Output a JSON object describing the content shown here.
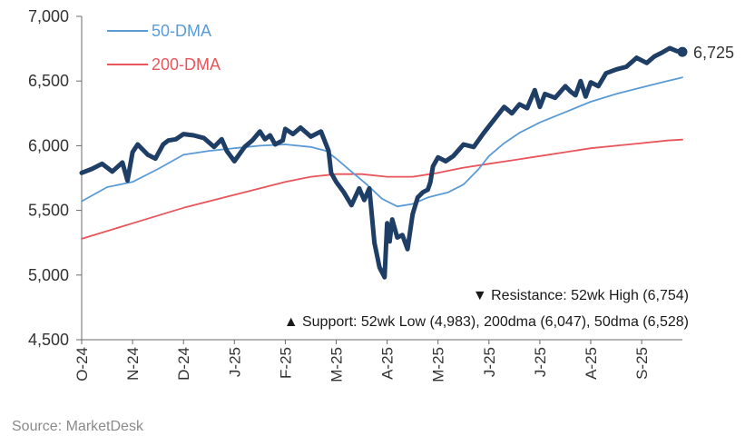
{
  "chart_data": {
    "type": "line",
    "title": "",
    "xlabel": "",
    "ylabel": "",
    "ylim": [
      4500,
      7000
    ],
    "yticks": [
      "7,000",
      "6,500",
      "6,000",
      "5,500",
      "5,000",
      "4,500"
    ],
    "ytick_values": [
      7000,
      6500,
      6000,
      5500,
      5000,
      4500
    ],
    "xticks": [
      "O-24",
      "N-24",
      "D-24",
      "J-25",
      "F-25",
      "M-25",
      "A-25",
      "M-25",
      "J-25",
      "J-25",
      "A-25",
      "S-25"
    ],
    "legend": [
      "50-DMA",
      "200-DMA"
    ],
    "last_value_label": "6,725",
    "colors": {
      "price": "#1f3e66",
      "dma50": "#5b9bd5",
      "dma200": "#e8555b",
      "axis": "#6b6b6b"
    },
    "series": [
      {
        "name": "Price",
        "color": "#1f3e66",
        "x": [
          0.0,
          0.2,
          0.4,
          0.6,
          0.8,
          0.9,
          1.0,
          1.1,
          1.3,
          1.45,
          1.6,
          1.7,
          1.85,
          2.0,
          2.2,
          2.4,
          2.6,
          2.75,
          2.85,
          3.0,
          3.2,
          3.35,
          3.5,
          3.6,
          3.7,
          3.8,
          3.95,
          4.0,
          4.15,
          4.3,
          4.5,
          4.7,
          4.85,
          4.9,
          5.0,
          5.15,
          5.3,
          5.45,
          5.55,
          5.65,
          5.75,
          5.85,
          5.95,
          6.0,
          6.05,
          6.1,
          6.2,
          6.3,
          6.4,
          6.5,
          6.6,
          6.7,
          6.8,
          6.85,
          6.9,
          7.0,
          7.15,
          7.3,
          7.5,
          7.7,
          7.9,
          8.1,
          8.3,
          8.45,
          8.6,
          8.75,
          8.9,
          9.0,
          9.1,
          9.3,
          9.5,
          9.6,
          9.7,
          9.8,
          9.9,
          10.0,
          10.15,
          10.3,
          10.5,
          10.7,
          10.9,
          11.1,
          11.25,
          11.4,
          11.55,
          11.7,
          11.8
        ],
        "values": [
          5790,
          5820,
          5860,
          5800,
          5870,
          5730,
          5950,
          6010,
          5930,
          5900,
          6010,
          6040,
          6050,
          6090,
          6080,
          6060,
          5990,
          6050,
          5960,
          5880,
          5990,
          6040,
          6110,
          6050,
          6080,
          6010,
          6040,
          6130,
          6090,
          6140,
          6070,
          6110,
          5960,
          5790,
          5720,
          5640,
          5540,
          5670,
          5580,
          5670,
          5250,
          5060,
          4983,
          5400,
          5260,
          5430,
          5290,
          5310,
          5200,
          5470,
          5600,
          5640,
          5660,
          5720,
          5840,
          5910,
          5880,
          5920,
          6010,
          5990,
          6100,
          6200,
          6300,
          6250,
          6320,
          6290,
          6430,
          6300,
          6400,
          6370,
          6460,
          6420,
          6390,
          6500,
          6380,
          6490,
          6460,
          6560,
          6590,
          6610,
          6680,
          6640,
          6690,
          6720,
          6754,
          6730,
          6725
        ]
      },
      {
        "name": "50-DMA",
        "color": "#5b9bd5",
        "x": [
          0.0,
          0.5,
          1.0,
          1.5,
          2.0,
          2.5,
          3.0,
          3.5,
          4.0,
          4.5,
          4.8,
          5.0,
          5.3,
          5.6,
          5.9,
          6.2,
          6.5,
          6.8,
          7.0,
          7.2,
          7.5,
          7.8,
          8.0,
          8.3,
          8.6,
          9.0,
          9.5,
          10.0,
          10.5,
          11.0,
          11.5,
          11.8
        ],
        "values": [
          5570,
          5680,
          5720,
          5820,
          5930,
          5960,
          5980,
          6000,
          6010,
          5990,
          5960,
          5900,
          5800,
          5700,
          5590,
          5530,
          5550,
          5600,
          5620,
          5640,
          5700,
          5820,
          5920,
          6020,
          6100,
          6180,
          6260,
          6340,
          6400,
          6450,
          6500,
          6528
        ]
      },
      {
        "name": "200-DMA",
        "color": "#e8555b",
        "x": [
          0.0,
          1.0,
          2.0,
          3.0,
          4.0,
          4.5,
          5.0,
          5.5,
          6.0,
          6.5,
          7.0,
          7.5,
          8.0,
          8.5,
          9.0,
          9.5,
          10.0,
          10.5,
          11.0,
          11.5,
          11.8
        ],
        "values": [
          5280,
          5400,
          5520,
          5620,
          5720,
          5760,
          5780,
          5780,
          5760,
          5760,
          5790,
          5830,
          5860,
          5890,
          5920,
          5950,
          5980,
          6000,
          6020,
          6040,
          6047
        ]
      }
    ],
    "annotations": [
      "▼ Resistance:  52wk High (6,754)",
      "▲ Support:  52wk Low (4,983), 200dma (6,047), 50dma (6,528)"
    ],
    "source": "Source: MarketDesk"
  }
}
